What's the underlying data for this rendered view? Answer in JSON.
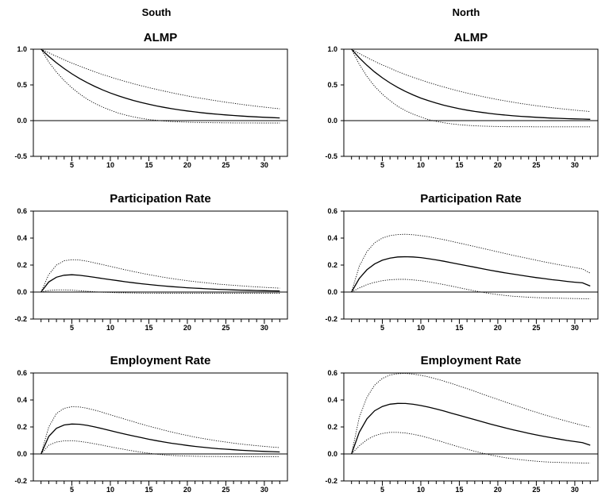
{
  "columns": [
    "South",
    "North"
  ],
  "chart_data": [
    {
      "type": "line",
      "region": "South",
      "title": "ALMP",
      "x": [
        1,
        2,
        3,
        4,
        5,
        6,
        7,
        8,
        9,
        10,
        11,
        12,
        13,
        14,
        15,
        16,
        17,
        18,
        19,
        20,
        21,
        22,
        23,
        24,
        25,
        26,
        27,
        28,
        29,
        30,
        31,
        32
      ],
      "ylim": [
        -0.5,
        1.0
      ],
      "yticks": [
        -0.5,
        0.0,
        0.5,
        1.0
      ],
      "xticks": [
        5,
        10,
        15,
        20,
        25,
        30
      ],
      "grid": false,
      "series": [
        {
          "style": "solid",
          "values": [
            1.0,
            0.9,
            0.81,
            0.729,
            0.656,
            0.59,
            0.531,
            0.478,
            0.43,
            0.387,
            0.349,
            0.314,
            0.282,
            0.254,
            0.229,
            0.206,
            0.185,
            0.167,
            0.15,
            0.135,
            0.122,
            0.109,
            0.098,
            0.089,
            0.08,
            0.072,
            0.065,
            0.058,
            0.052,
            0.047,
            0.042,
            0.038
          ]
        },
        {
          "style": "dotted",
          "values": [
            1.0,
            0.95,
            0.9,
            0.852,
            0.806,
            0.763,
            0.722,
            0.683,
            0.646,
            0.611,
            0.578,
            0.547,
            0.517,
            0.489,
            0.462,
            0.437,
            0.413,
            0.39,
            0.368,
            0.347,
            0.327,
            0.309,
            0.291,
            0.274,
            0.258,
            0.243,
            0.228,
            0.214,
            0.201,
            0.189,
            0.177,
            0.166
          ]
        },
        {
          "style": "dotted",
          "values": [
            1.0,
            0.82,
            0.68,
            0.56,
            0.46,
            0.375,
            0.3,
            0.24,
            0.19,
            0.145,
            0.108,
            0.077,
            0.052,
            0.032,
            0.016,
            0.004,
            -0.006,
            -0.013,
            -0.018,
            -0.022,
            -0.025,
            -0.027,
            -0.029,
            -0.03,
            -0.031,
            -0.032,
            -0.032,
            -0.032,
            -0.033,
            -0.033,
            -0.033,
            -0.033
          ]
        }
      ]
    },
    {
      "type": "line",
      "region": "North",
      "title": "ALMP",
      "x": [
        1,
        2,
        3,
        4,
        5,
        6,
        7,
        8,
        9,
        10,
        11,
        12,
        13,
        14,
        15,
        16,
        17,
        18,
        19,
        20,
        21,
        22,
        23,
        24,
        25,
        26,
        27,
        28,
        29,
        30,
        31,
        32
      ],
      "ylim": [
        -0.5,
        1.0
      ],
      "yticks": [
        -0.5,
        0.0,
        0.5,
        1.0
      ],
      "xticks": [
        5,
        10,
        15,
        20,
        25,
        30
      ],
      "grid": false,
      "series": [
        {
          "style": "solid",
          "values": [
            1.0,
            0.88,
            0.774,
            0.681,
            0.6,
            0.528,
            0.464,
            0.409,
            0.36,
            0.316,
            0.279,
            0.245,
            0.216,
            0.19,
            0.167,
            0.147,
            0.129,
            0.114,
            0.1,
            0.088,
            0.078,
            0.068,
            0.06,
            0.053,
            0.047,
            0.041,
            0.036,
            0.032,
            0.028,
            0.025,
            0.022,
            0.019
          ]
        },
        {
          "style": "dotted",
          "values": [
            1.0,
            0.94,
            0.884,
            0.83,
            0.78,
            0.733,
            0.688,
            0.646,
            0.607,
            0.569,
            0.534,
            0.501,
            0.47,
            0.44,
            0.412,
            0.386,
            0.361,
            0.338,
            0.316,
            0.295,
            0.276,
            0.258,
            0.24,
            0.224,
            0.209,
            0.195,
            0.182,
            0.169,
            0.158,
            0.147,
            0.137,
            0.128
          ]
        },
        {
          "style": "dotted",
          "values": [
            1.0,
            0.79,
            0.62,
            0.48,
            0.37,
            0.28,
            0.2,
            0.14,
            0.09,
            0.05,
            0.015,
            -0.01,
            -0.03,
            -0.045,
            -0.057,
            -0.066,
            -0.072,
            -0.077,
            -0.08,
            -0.082,
            -0.084,
            -0.085,
            -0.086,
            -0.086,
            -0.087,
            -0.087,
            -0.087,
            -0.087,
            -0.087,
            -0.087,
            -0.087,
            -0.087
          ]
        }
      ]
    },
    {
      "type": "line",
      "region": "South",
      "title": "Participation Rate",
      "x": [
        1,
        2,
        3,
        4,
        5,
        6,
        7,
        8,
        9,
        10,
        11,
        12,
        13,
        14,
        15,
        16,
        17,
        18,
        19,
        20,
        21,
        22,
        23,
        24,
        25,
        26,
        27,
        28,
        29,
        30,
        31,
        32
      ],
      "ylim": [
        -0.2,
        0.6
      ],
      "yticks": [
        -0.2,
        0.0,
        0.2,
        0.4,
        0.6
      ],
      "xticks": [
        5,
        10,
        15,
        20,
        25,
        30
      ],
      "grid": false,
      "series": [
        {
          "style": "solid",
          "values": [
            0.0,
            0.075,
            0.11,
            0.125,
            0.128,
            0.124,
            0.117,
            0.109,
            0.1,
            0.092,
            0.084,
            0.076,
            0.069,
            0.062,
            0.056,
            0.05,
            0.045,
            0.04,
            0.036,
            0.032,
            0.029,
            0.026,
            0.023,
            0.02,
            0.018,
            0.016,
            0.014,
            0.013,
            0.011,
            0.01,
            0.009,
            0.008
          ]
        },
        {
          "style": "dotted",
          "values": [
            0.0,
            0.13,
            0.2,
            0.232,
            0.24,
            0.237,
            0.228,
            0.216,
            0.203,
            0.19,
            0.177,
            0.164,
            0.152,
            0.14,
            0.129,
            0.119,
            0.109,
            0.1,
            0.092,
            0.084,
            0.077,
            0.071,
            0.065,
            0.059,
            0.054,
            0.05,
            0.046,
            0.042,
            0.038,
            0.035,
            0.032,
            0.029
          ]
        },
        {
          "style": "dotted",
          "values": [
            0.0,
            0.012,
            0.016,
            0.016,
            0.014,
            0.01,
            0.006,
            0.002,
            -0.001,
            -0.003,
            -0.005,
            -0.006,
            -0.007,
            -0.008,
            -0.008,
            -0.009,
            -0.009,
            -0.009,
            -0.009,
            -0.009,
            -0.009,
            -0.009,
            -0.009,
            -0.009,
            -0.009,
            -0.009,
            -0.009,
            -0.009,
            -0.009,
            -0.009,
            -0.009,
            -0.009
          ]
        }
      ]
    },
    {
      "type": "line",
      "region": "North",
      "title": "Participation Rate",
      "x": [
        1,
        2,
        3,
        4,
        5,
        6,
        7,
        8,
        9,
        10,
        11,
        12,
        13,
        14,
        15,
        16,
        17,
        18,
        19,
        20,
        21,
        22,
        23,
        24,
        25,
        26,
        27,
        28,
        29,
        30,
        31,
        32
      ],
      "ylim": [
        -0.2,
        0.6
      ],
      "yticks": [
        -0.2,
        0.0,
        0.2,
        0.4,
        0.6
      ],
      "xticks": [
        5,
        10,
        15,
        20,
        25,
        30
      ],
      "grid": false,
      "series": [
        {
          "style": "solid",
          "values": [
            0.0,
            0.1,
            0.165,
            0.208,
            0.236,
            0.252,
            0.26,
            0.262,
            0.26,
            0.255,
            0.247,
            0.238,
            0.228,
            0.217,
            0.206,
            0.195,
            0.184,
            0.173,
            0.162,
            0.152,
            0.142,
            0.133,
            0.124,
            0.115,
            0.107,
            0.1,
            0.092,
            0.086,
            0.079,
            0.073,
            0.068,
            0.045
          ]
        },
        {
          "style": "dotted",
          "values": [
            0.0,
            0.19,
            0.3,
            0.365,
            0.4,
            0.418,
            0.426,
            0.428,
            0.425,
            0.418,
            0.41,
            0.399,
            0.388,
            0.376,
            0.363,
            0.35,
            0.337,
            0.324,
            0.311,
            0.298,
            0.285,
            0.272,
            0.26,
            0.248,
            0.236,
            0.224,
            0.213,
            0.202,
            0.192,
            0.181,
            0.171,
            0.14
          ]
        },
        {
          "style": "dotted",
          "values": [
            0.0,
            0.03,
            0.055,
            0.072,
            0.084,
            0.091,
            0.094,
            0.094,
            0.09,
            0.084,
            0.076,
            0.066,
            0.055,
            0.044,
            0.032,
            0.02,
            0.009,
            -0.002,
            -0.011,
            -0.019,
            -0.025,
            -0.031,
            -0.035,
            -0.038,
            -0.041,
            -0.043,
            -0.045,
            -0.046,
            -0.047,
            -0.048,
            -0.049,
            -0.05
          ]
        }
      ]
    },
    {
      "type": "line",
      "region": "South",
      "title": "Employment Rate",
      "x": [
        1,
        2,
        3,
        4,
        5,
        6,
        7,
        8,
        9,
        10,
        11,
        12,
        13,
        14,
        15,
        16,
        17,
        18,
        19,
        20,
        21,
        22,
        23,
        24,
        25,
        26,
        27,
        28,
        29,
        30,
        31,
        32
      ],
      "ylim": [
        -0.2,
        0.6
      ],
      "yticks": [
        -0.2,
        0.0,
        0.2,
        0.4,
        0.6
      ],
      "xticks": [
        5,
        10,
        15,
        20,
        25,
        30
      ],
      "grid": false,
      "series": [
        {
          "style": "solid",
          "values": [
            0.0,
            0.13,
            0.19,
            0.215,
            0.222,
            0.22,
            0.212,
            0.2,
            0.187,
            0.173,
            0.159,
            0.146,
            0.133,
            0.121,
            0.109,
            0.098,
            0.088,
            0.079,
            0.071,
            0.063,
            0.056,
            0.05,
            0.044,
            0.039,
            0.035,
            0.031,
            0.027,
            0.024,
            0.021,
            0.019,
            0.017,
            0.015
          ]
        },
        {
          "style": "dotted",
          "values": [
            0.0,
            0.2,
            0.3,
            0.338,
            0.35,
            0.348,
            0.338,
            0.324,
            0.308,
            0.29,
            0.273,
            0.256,
            0.239,
            0.222,
            0.206,
            0.191,
            0.176,
            0.162,
            0.149,
            0.137,
            0.125,
            0.115,
            0.105,
            0.096,
            0.088,
            0.08,
            0.073,
            0.067,
            0.061,
            0.056,
            0.051,
            0.047
          ]
        },
        {
          "style": "dotted",
          "values": [
            0.0,
            0.065,
            0.088,
            0.097,
            0.098,
            0.093,
            0.085,
            0.075,
            0.064,
            0.053,
            0.042,
            0.032,
            0.022,
            0.013,
            0.005,
            -0.002,
            -0.007,
            -0.011,
            -0.014,
            -0.016,
            -0.017,
            -0.018,
            -0.019,
            -0.019,
            -0.02,
            -0.02,
            -0.02,
            -0.02,
            -0.02,
            -0.02,
            -0.02,
            -0.02
          ]
        }
      ]
    },
    {
      "type": "line",
      "region": "North",
      "title": "Employment Rate",
      "x": [
        1,
        2,
        3,
        4,
        5,
        6,
        7,
        8,
        9,
        10,
        11,
        12,
        13,
        14,
        15,
        16,
        17,
        18,
        19,
        20,
        21,
        22,
        23,
        24,
        25,
        26,
        27,
        28,
        29,
        30,
        31,
        32
      ],
      "ylim": [
        -0.2,
        0.6
      ],
      "yticks": [
        -0.2,
        0.0,
        0.2,
        0.4,
        0.6
      ],
      "xticks": [
        5,
        10,
        15,
        20,
        25,
        30
      ],
      "grid": false,
      "series": [
        {
          "style": "solid",
          "values": [
            0.0,
            0.16,
            0.26,
            0.32,
            0.352,
            0.369,
            0.375,
            0.374,
            0.368,
            0.359,
            0.347,
            0.333,
            0.318,
            0.302,
            0.286,
            0.27,
            0.254,
            0.238,
            0.222,
            0.207,
            0.193,
            0.179,
            0.166,
            0.153,
            0.141,
            0.13,
            0.12,
            0.11,
            0.1,
            0.092,
            0.084,
            0.065
          ]
        },
        {
          "style": "dotted",
          "values": [
            0.0,
            0.27,
            0.42,
            0.51,
            0.56,
            0.585,
            0.595,
            0.597,
            0.592,
            0.583,
            0.571,
            0.556,
            0.54,
            0.522,
            0.503,
            0.484,
            0.464,
            0.444,
            0.424,
            0.404,
            0.384,
            0.365,
            0.346,
            0.327,
            0.309,
            0.291,
            0.274,
            0.258,
            0.242,
            0.227,
            0.212,
            0.198
          ]
        },
        {
          "style": "dotted",
          "values": [
            0.0,
            0.06,
            0.105,
            0.135,
            0.152,
            0.16,
            0.16,
            0.155,
            0.146,
            0.134,
            0.119,
            0.103,
            0.086,
            0.068,
            0.051,
            0.035,
            0.02,
            0.006,
            -0.007,
            -0.018,
            -0.028,
            -0.036,
            -0.043,
            -0.049,
            -0.054,
            -0.058,
            -0.061,
            -0.063,
            -0.065,
            -0.066,
            -0.067,
            -0.068
          ]
        }
      ]
    }
  ]
}
